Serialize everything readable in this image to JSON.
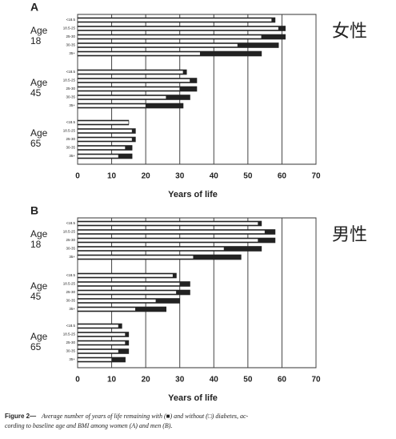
{
  "chart_data": [
    {
      "type": "bar",
      "panel": "A",
      "annotation": "女性",
      "xlabel": "Years of life",
      "xlim": [
        0,
        70
      ],
      "xticks": [
        0,
        10,
        20,
        30,
        40,
        50,
        60,
        70
      ],
      "groups": [
        {
          "label": [
            "Age",
            "18"
          ],
          "categories": [
            "<18.5",
            "18.5-25",
            "25-30",
            "30-35",
            "35+"
          ],
          "series": [
            {
              "color": "#222222",
              "values": [
                58,
                61,
                61,
                59,
                54
              ]
            },
            {
              "color": "#ffffff",
              "values": [
                57,
                59,
                54,
                47,
                36
              ]
            }
          ]
        },
        {
          "label": [
            "Age",
            "45"
          ],
          "categories": [
            "<18.5",
            "18.5-25",
            "25-30",
            "30-35",
            "35+"
          ],
          "series": [
            {
              "color": "#222222",
              "values": [
                32,
                35,
                35,
                33,
                31
              ]
            },
            {
              "color": "#ffffff",
              "values": [
                31,
                33,
                30,
                26,
                20
              ]
            }
          ]
        },
        {
          "label": [
            "Age",
            "65"
          ],
          "categories": [
            "<18.5",
            "18.5-25",
            "25-30",
            "30-35",
            "35+"
          ],
          "series": [
            {
              "color": "#222222",
              "values": [
                15,
                17,
                17,
                16,
                16
              ]
            },
            {
              "color": "#ffffff",
              "values": [
                15,
                16,
                16,
                14,
                12
              ]
            }
          ]
        }
      ]
    },
    {
      "type": "bar",
      "panel": "B",
      "annotation": "男性",
      "xlabel": "Years of life",
      "xlim": [
        0,
        70
      ],
      "xticks": [
        0,
        10,
        20,
        30,
        40,
        50,
        60,
        70
      ],
      "groups": [
        {
          "label": [
            "Age",
            "18"
          ],
          "categories": [
            "<18.5",
            "18.5-25",
            "25-30",
            "30-35",
            "35+"
          ],
          "series": [
            {
              "color": "#222222",
              "values": [
                54,
                58,
                58,
                54,
                48
              ]
            },
            {
              "color": "#ffffff",
              "values": [
                53,
                55,
                53,
                43,
                34
              ]
            }
          ]
        },
        {
          "label": [
            "Age",
            "45"
          ],
          "categories": [
            "<18.5",
            "18.5-25",
            "25-30",
            "30-35",
            "35+"
          ],
          "series": [
            {
              "color": "#222222",
              "values": [
                29,
                33,
                33,
                30,
                26
              ]
            },
            {
              "color": "#ffffff",
              "values": [
                28,
                30,
                29,
                23,
                17
              ]
            }
          ]
        },
        {
          "label": [
            "Age",
            "65"
          ],
          "categories": [
            "<18.5",
            "18.5-25",
            "25-30",
            "30-35",
            "35+"
          ],
          "series": [
            {
              "color": "#222222",
              "values": [
                13,
                15,
                15,
                15,
                14
              ]
            },
            {
              "color": "#ffffff",
              "values": [
                12,
                14,
                14,
                12,
                10
              ]
            }
          ]
        }
      ]
    }
  ],
  "caption": {
    "label": "Figure 2—",
    "lines": [
      "Average number of years of life remaining with (■) and without (□) diabetes, ac-",
      "cording to baseline age and BMI among women (A) and men (B)."
    ]
  }
}
